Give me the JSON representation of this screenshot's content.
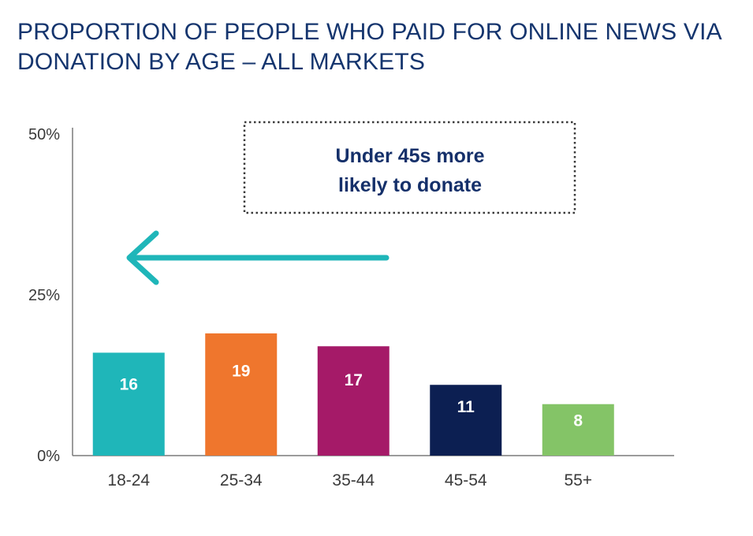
{
  "title_lines": [
    "PROPORTION OF PEOPLE WHO PAID FOR ONLINE NEWS VIA",
    "DONATION BY AGE – ALL MARKETS"
  ],
  "annotation": {
    "lines": [
      "Under 45s more",
      "likely to donate"
    ],
    "arrow_color": "#1fb6b9"
  },
  "colors": {
    "title": "#15356e",
    "axis": "#7a7a7a"
  },
  "chart_data": {
    "type": "bar",
    "title": "PROPORTION OF PEOPLE WHO PAID FOR ONLINE NEWS VIA DONATION BY AGE – ALL MARKETS",
    "categories": [
      "18-24",
      "25-34",
      "35-44",
      "45-54",
      "55+"
    ],
    "values": [
      16,
      19,
      17,
      11,
      8
    ],
    "data_labels": [
      "16",
      "19",
      "17",
      "11",
      "8"
    ],
    "bar_colors": [
      "#1fb6b9",
      "#ef762d",
      "#a51a68",
      "#0c1f52",
      "#84c467"
    ],
    "ylim": [
      0,
      50
    ],
    "yticks": [
      0,
      25,
      50
    ],
    "ytick_labels": [
      "0%",
      "25%",
      "50%"
    ],
    "xlabel": "",
    "ylabel": "",
    "grid": false,
    "legend": "none"
  }
}
